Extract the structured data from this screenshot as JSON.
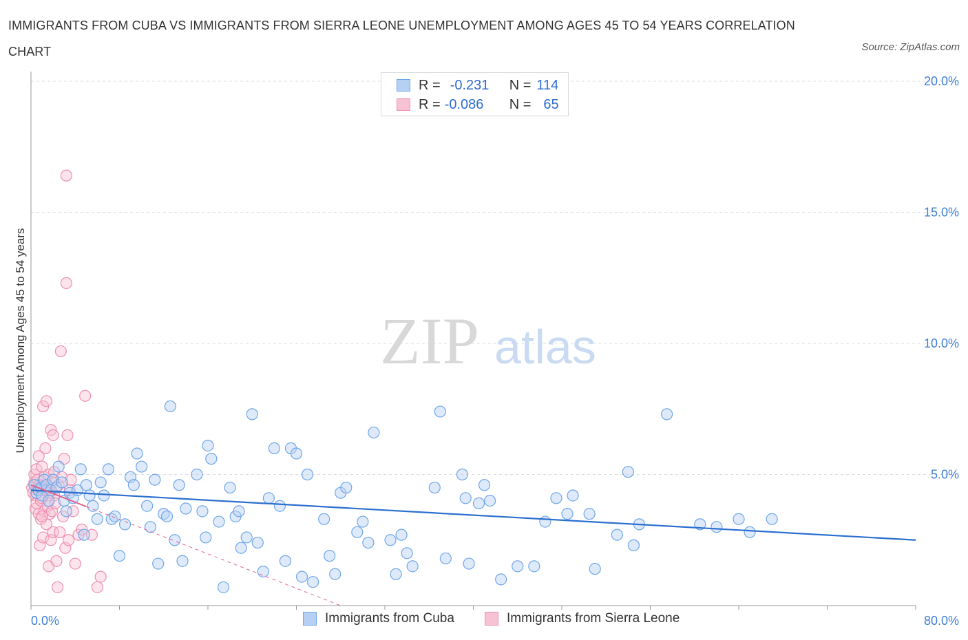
{
  "title": "IMMIGRANTS FROM CUBA VS IMMIGRANTS FROM SIERRA LEONE UNEMPLOYMENT AMONG AGES 45 TO 54 YEARS CORRELATION CHART",
  "source": "Source: ZipAtlas.com",
  "watermark": {
    "zip": "ZIP",
    "atlas": "atlas"
  },
  "legend": {
    "cuba": {
      "r_label": "R =",
      "r_value": "-0.231",
      "n_label": "N =",
      "n_value": "114"
    },
    "sierra": {
      "r_label": "R =",
      "r_value": "-0.086",
      "n_label": "N =",
      "n_value": "65"
    }
  },
  "colors": {
    "cuba": "#6fa6e8",
    "cuba_fill": "#b5d0f3",
    "cuba_line": "#2b6fcf",
    "sierra": "#ef8fb0",
    "sierra_fill": "#f7c3d4",
    "sierra_line": "#e0628e",
    "grid": "#dddddd"
  },
  "chart_data": {
    "type": "scatter",
    "title": "IMMIGRANTS FROM CUBA VS IMMIGRANTS FROM SIERRA LEONE UNEMPLOYMENT AMONG AGES 45 TO 54 YEARS CORRELATION CHART",
    "xlabel": "",
    "ylabel": "Unemployment Among Ages 45 to 54 years",
    "xlim": [
      0,
      80
    ],
    "ylim": [
      0,
      20
    ],
    "x_tick_labels": [
      "0.0%",
      "80.0%"
    ],
    "y_ticks": [
      5,
      10,
      15,
      20
    ],
    "y_tick_labels": [
      "5.0%",
      "10.0%",
      "15.0%",
      "20.0%"
    ],
    "grid": true,
    "series": [
      {
        "name": "Immigrants from Cuba",
        "trend": {
          "x": [
            0,
            80
          ],
          "y": [
            4.4,
            2.5
          ]
        },
        "points": [
          [
            0.3,
            4.6
          ],
          [
            0.5,
            4.3
          ],
          [
            0.7,
            4.4
          ],
          [
            0.9,
            4.5
          ],
          [
            1.0,
            4.2
          ],
          [
            1.2,
            4.8
          ],
          [
            1.4,
            4.6
          ],
          [
            1.6,
            4.0
          ],
          [
            1.8,
            4.4
          ],
          [
            2.0,
            4.8
          ],
          [
            2.3,
            4.5
          ],
          [
            2.5,
            5.3
          ],
          [
            2.8,
            4.7
          ],
          [
            3.0,
            4.0
          ],
          [
            3.2,
            3.6
          ],
          [
            3.5,
            4.3
          ],
          [
            3.8,
            4.1
          ],
          [
            4.2,
            4.4
          ],
          [
            4.5,
            5.2
          ],
          [
            4.8,
            2.7
          ],
          [
            5.0,
            4.6
          ],
          [
            5.3,
            4.2
          ],
          [
            5.6,
            3.8
          ],
          [
            6.0,
            3.3
          ],
          [
            6.3,
            4.7
          ],
          [
            6.6,
            4.2
          ],
          [
            7.0,
            5.2
          ],
          [
            7.3,
            3.3
          ],
          [
            7.6,
            3.4
          ],
          [
            8.0,
            1.9
          ],
          [
            8.5,
            3.1
          ],
          [
            9.0,
            4.9
          ],
          [
            9.3,
            4.6
          ],
          [
            9.6,
            5.8
          ],
          [
            10.0,
            5.3
          ],
          [
            10.5,
            3.8
          ],
          [
            10.8,
            3.0
          ],
          [
            11.2,
            4.8
          ],
          [
            11.5,
            1.6
          ],
          [
            12.0,
            3.5
          ],
          [
            12.3,
            3.4
          ],
          [
            12.6,
            7.6
          ],
          [
            13.0,
            2.5
          ],
          [
            13.4,
            4.6
          ],
          [
            13.7,
            1.7
          ],
          [
            14.0,
            3.7
          ],
          [
            15.0,
            5.0
          ],
          [
            15.5,
            3.6
          ],
          [
            15.8,
            2.6
          ],
          [
            16.0,
            6.1
          ],
          [
            16.3,
            5.6
          ],
          [
            17.0,
            3.2
          ],
          [
            17.4,
            0.7
          ],
          [
            18.0,
            4.5
          ],
          [
            18.5,
            3.4
          ],
          [
            18.8,
            3.6
          ],
          [
            19.0,
            2.2
          ],
          [
            19.5,
            2.6
          ],
          [
            20.0,
            7.3
          ],
          [
            20.5,
            2.4
          ],
          [
            21.0,
            1.3
          ],
          [
            21.5,
            4.1
          ],
          [
            22.0,
            6.0
          ],
          [
            22.5,
            3.8
          ],
          [
            23.0,
            1.7
          ],
          [
            23.5,
            6.0
          ],
          [
            24.0,
            5.8
          ],
          [
            24.5,
            1.1
          ],
          [
            25.0,
            5.0
          ],
          [
            25.5,
            0.9
          ],
          [
            26.5,
            3.3
          ],
          [
            27.0,
            1.9
          ],
          [
            27.5,
            1.2
          ],
          [
            28.0,
            4.3
          ],
          [
            28.5,
            4.5
          ],
          [
            29.5,
            2.8
          ],
          [
            30.0,
            3.2
          ],
          [
            30.5,
            2.4
          ],
          [
            31.0,
            6.6
          ],
          [
            32.5,
            2.5
          ],
          [
            33.0,
            1.2
          ],
          [
            33.5,
            2.7
          ],
          [
            34.0,
            2.0
          ],
          [
            34.5,
            1.5
          ],
          [
            36.5,
            4.5
          ],
          [
            37.0,
            7.4
          ],
          [
            37.5,
            1.8
          ],
          [
            39.0,
            5.0
          ],
          [
            39.3,
            4.1
          ],
          [
            39.6,
            1.6
          ],
          [
            40.5,
            3.9
          ],
          [
            41.0,
            4.6
          ],
          [
            41.5,
            4.0
          ],
          [
            42.5,
            1.0
          ],
          [
            44.0,
            1.5
          ],
          [
            45.5,
            1.5
          ],
          [
            46.5,
            3.2
          ],
          [
            47.5,
            4.1
          ],
          [
            48.5,
            3.5
          ],
          [
            49.0,
            4.2
          ],
          [
            50.5,
            3.5
          ],
          [
            51.0,
            1.4
          ],
          [
            53.0,
            2.7
          ],
          [
            54.0,
            5.1
          ],
          [
            54.5,
            2.3
          ],
          [
            55.0,
            3.1
          ],
          [
            57.5,
            7.3
          ],
          [
            60.5,
            3.1
          ],
          [
            64.0,
            3.3
          ],
          [
            65.0,
            2.8
          ],
          [
            67.0,
            3.3
          ],
          [
            62.0,
            3.0
          ]
        ]
      },
      {
        "name": "Immigrants from Sierra Leone",
        "trend": {
          "x": [
            0,
            28
          ],
          "y": [
            4.6,
            0.0
          ]
        },
        "points": [
          [
            0.1,
            4.5
          ],
          [
            0.2,
            4.3
          ],
          [
            0.3,
            5.0
          ],
          [
            0.3,
            4.7
          ],
          [
            0.4,
            3.7
          ],
          [
            0.4,
            4.2
          ],
          [
            0.5,
            5.2
          ],
          [
            0.5,
            3.9
          ],
          [
            0.6,
            4.8
          ],
          [
            0.6,
            4.4
          ],
          [
            0.7,
            5.7
          ],
          [
            0.7,
            3.5
          ],
          [
            0.8,
            4.6
          ],
          [
            0.8,
            2.3
          ],
          [
            0.9,
            4.0
          ],
          [
            0.9,
            3.3
          ],
          [
            1.0,
            5.3
          ],
          [
            1.0,
            4.1
          ],
          [
            1.1,
            7.6
          ],
          [
            1.1,
            2.6
          ],
          [
            1.2,
            4.9
          ],
          [
            1.2,
            3.6
          ],
          [
            1.3,
            6.0
          ],
          [
            1.3,
            4.4
          ],
          [
            1.4,
            7.8
          ],
          [
            1.4,
            3.1
          ],
          [
            1.5,
            4.6
          ],
          [
            1.5,
            3.8
          ],
          [
            1.6,
            5.0
          ],
          [
            1.6,
            1.5
          ],
          [
            1.7,
            4.3
          ],
          [
            1.7,
            3.5
          ],
          [
            1.8,
            6.7
          ],
          [
            1.8,
            2.5
          ],
          [
            1.9,
            4.7
          ],
          [
            1.9,
            3.6
          ],
          [
            2.0,
            6.5
          ],
          [
            2.0,
            2.8
          ],
          [
            2.1,
            5.1
          ],
          [
            2.1,
            4.2
          ],
          [
            2.2,
            3.9
          ],
          [
            2.3,
            1.7
          ],
          [
            2.4,
            0.7
          ],
          [
            2.5,
            4.6
          ],
          [
            2.6,
            2.8
          ],
          [
            2.7,
            9.7
          ],
          [
            2.8,
            4.9
          ],
          [
            2.9,
            3.4
          ],
          [
            3.0,
            5.6
          ],
          [
            3.1,
            2.2
          ],
          [
            3.2,
            12.3
          ],
          [
            3.2,
            16.4
          ],
          [
            3.3,
            6.5
          ],
          [
            3.4,
            2.5
          ],
          [
            3.5,
            4.4
          ],
          [
            3.6,
            4.8
          ],
          [
            3.8,
            3.6
          ],
          [
            4.0,
            1.6
          ],
          [
            4.3,
            2.7
          ],
          [
            4.6,
            2.9
          ],
          [
            4.9,
            8.0
          ],
          [
            5.5,
            2.7
          ],
          [
            6.0,
            0.7
          ],
          [
            6.3,
            1.1
          ],
          [
            1.0,
            3.4
          ]
        ]
      }
    ]
  }
}
